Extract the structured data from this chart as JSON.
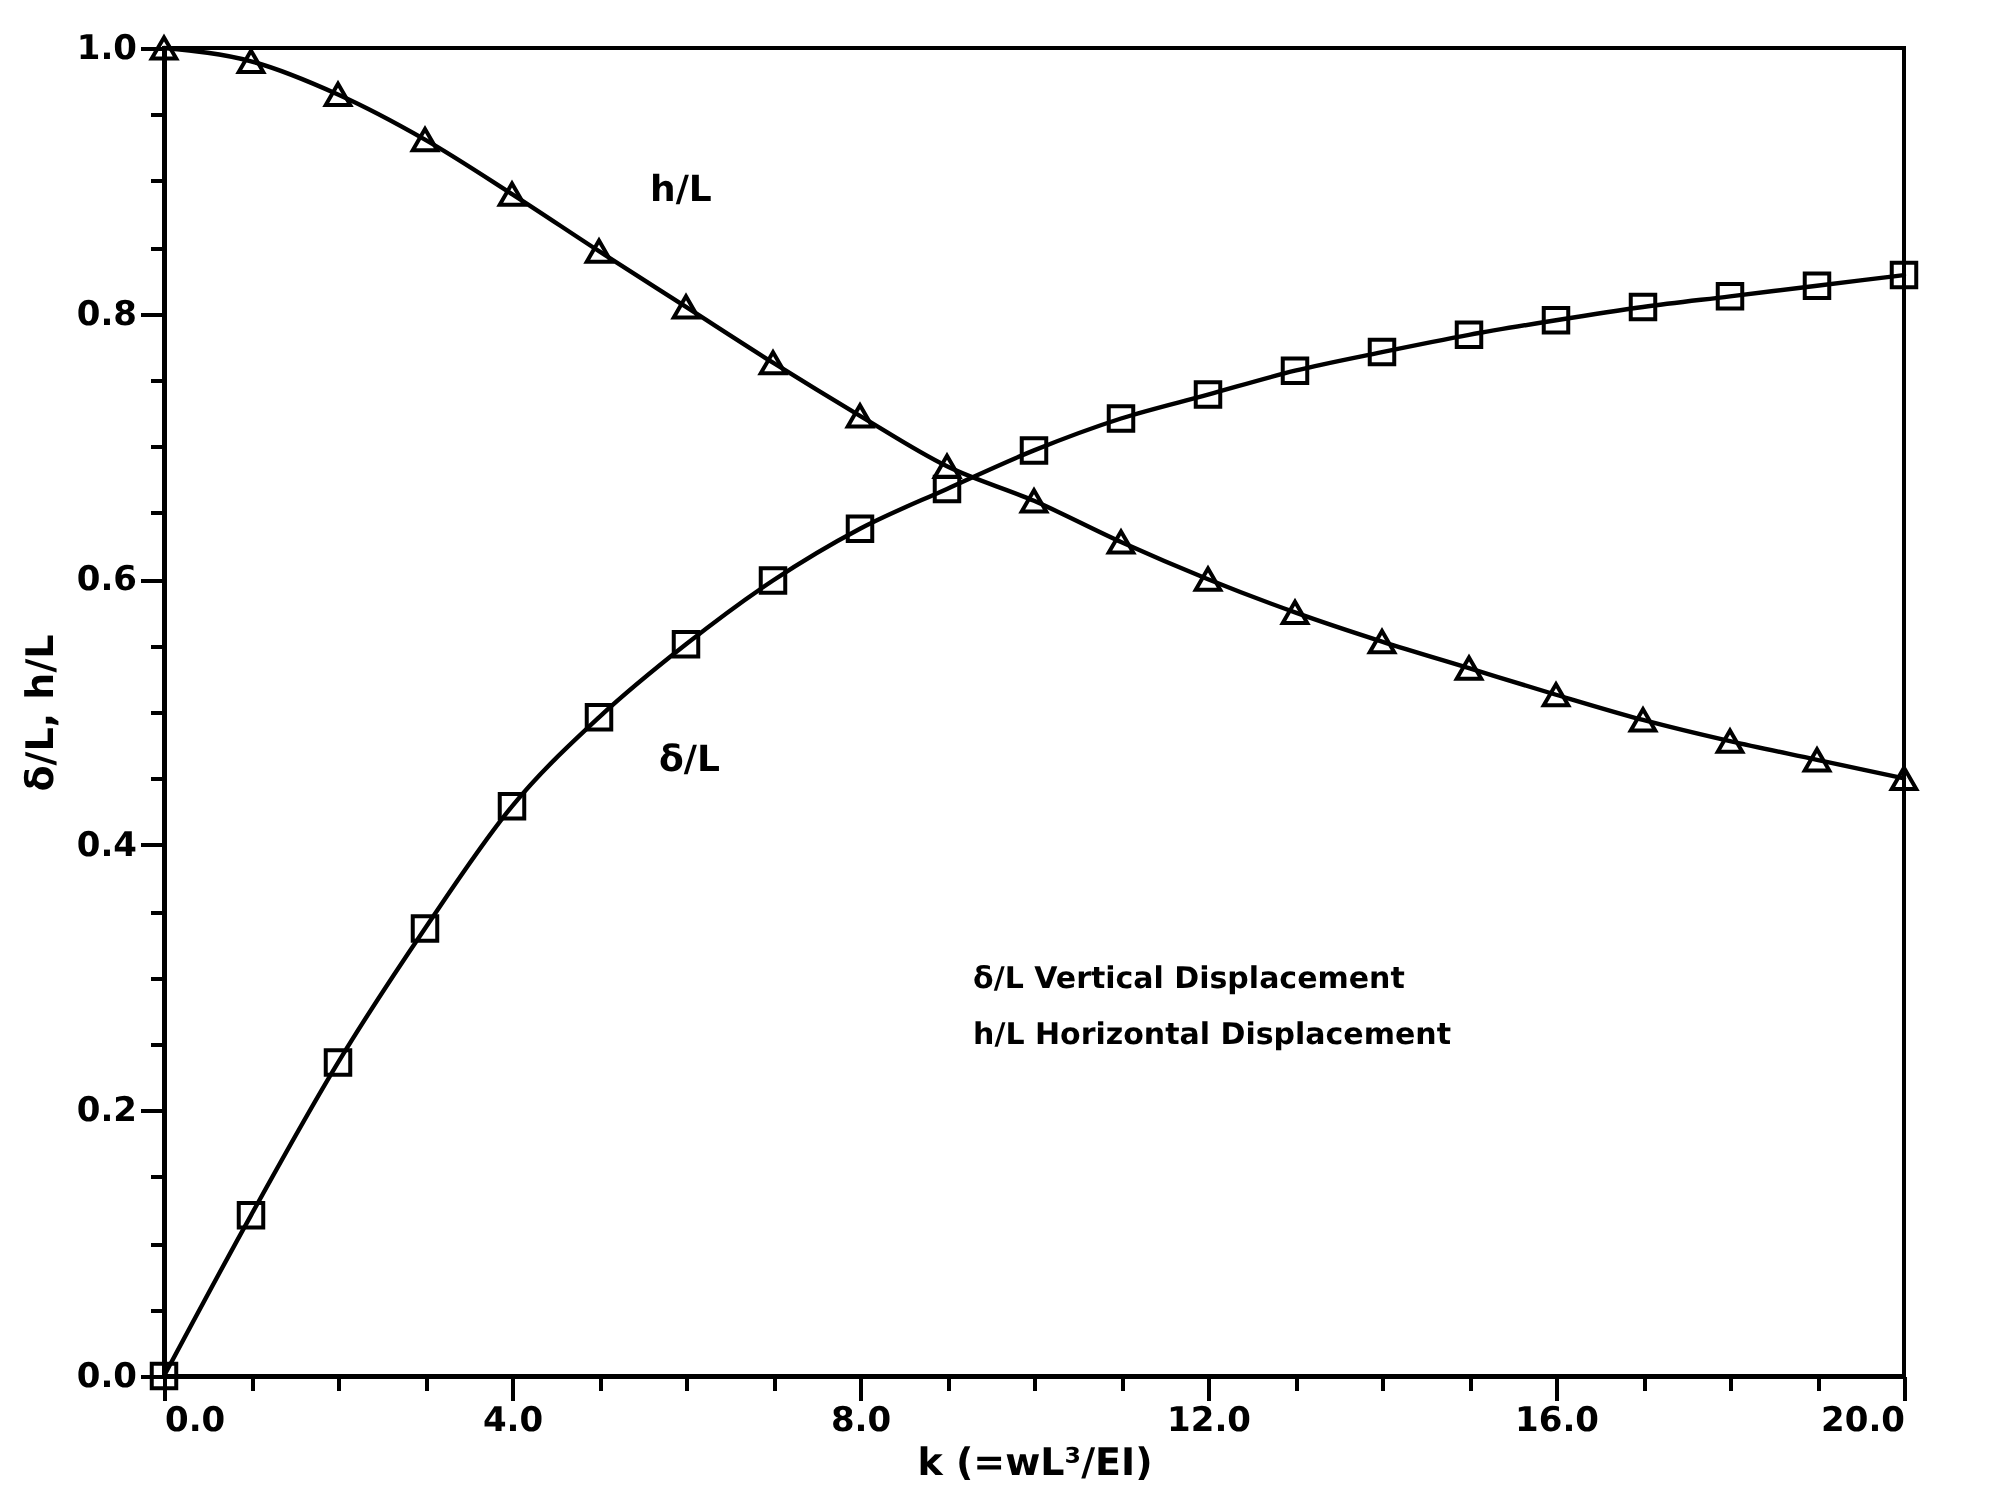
{
  "chart_data": {
    "type": "line",
    "xlabel": "k    (=wL³/EI)",
    "ylabel": "δ/L, h/L",
    "x": [
      0,
      1,
      2,
      3,
      4,
      5,
      6,
      7,
      8,
      9,
      10,
      11,
      12,
      13,
      14,
      15,
      16,
      17,
      18,
      19,
      20
    ],
    "series": [
      {
        "name": "δ/L",
        "color": "#000000",
        "marker": "square",
        "values": [
          0,
          0.121,
          0.236,
          0.337,
          0.429,
          0.496,
          0.551,
          0.599,
          0.638,
          0.668,
          0.697,
          0.721,
          0.739,
          0.757,
          0.771,
          0.784,
          0.795,
          0.805,
          0.813,
          0.821,
          0.829
        ]
      },
      {
        "name": "h/L",
        "color": "#000000",
        "marker": "triangle",
        "values": [
          1.0,
          0.99,
          0.965,
          0.931,
          0.89,
          0.847,
          0.805,
          0.763,
          0.723,
          0.685,
          0.659,
          0.628,
          0.6,
          0.575,
          0.553,
          0.533,
          0.513,
          0.494,
          0.478,
          0.464,
          0.45
        ]
      }
    ],
    "annotations": [
      "δ/L   Vertical Displacement",
      "h/L   Horizontal Displacement"
    ],
    "xlim": [
      0,
      20
    ],
    "ylim": [
      0,
      1
    ],
    "xticks": [
      {
        "value": 0,
        "label": "0.0"
      },
      {
        "value": 1,
        "label": null
      },
      {
        "value": 2,
        "label": null
      },
      {
        "value": 3,
        "label": null
      },
      {
        "value": 4,
        "label": "4.0"
      },
      {
        "value": 5,
        "label": null
      },
      {
        "value": 6,
        "label": null
      },
      {
        "value": 7,
        "label": null
      },
      {
        "value": 8,
        "label": "8.0"
      },
      {
        "value": 9,
        "label": null
      },
      {
        "value": 10,
        "label": null
      },
      {
        "value": 11,
        "label": null
      },
      {
        "value": 12,
        "label": "12.0"
      },
      {
        "value": 13,
        "label": null
      },
      {
        "value": 14,
        "label": null
      },
      {
        "value": 15,
        "label": null
      },
      {
        "value": 16,
        "label": "16.0"
      },
      {
        "value": 17,
        "label": null
      },
      {
        "value": 18,
        "label": null
      },
      {
        "value": 19,
        "label": null
      },
      {
        "value": 20,
        "label": "20.0"
      }
    ],
    "yticks": [
      {
        "value": 0,
        "label": "0.0"
      },
      {
        "value": 0.05,
        "label": null
      },
      {
        "value": 0.1,
        "label": null
      },
      {
        "value": 0.15,
        "label": null
      },
      {
        "value": 0.2,
        "label": "0.2"
      },
      {
        "value": 0.25,
        "label": null
      },
      {
        "value": 0.3,
        "label": null
      },
      {
        "value": 0.35,
        "label": null
      },
      {
        "value": 0.4,
        "label": "0.4"
      },
      {
        "value": 0.45,
        "label": null
      },
      {
        "value": 0.5,
        "label": null
      },
      {
        "value": 0.55,
        "label": null
      },
      {
        "value": 0.6,
        "label": "0.6"
      },
      {
        "value": 0.65,
        "label": null
      },
      {
        "value": 0.7,
        "label": null
      },
      {
        "value": 0.75,
        "label": null
      },
      {
        "value": 0.8,
        "label": "0.8"
      },
      {
        "value": 0.85,
        "label": null
      },
      {
        "value": 0.9,
        "label": null
      },
      {
        "value": 0.95,
        "label": null
      },
      {
        "value": 1.0,
        "label": "1.0"
      }
    ],
    "grid": false,
    "line_style": "solid"
  }
}
